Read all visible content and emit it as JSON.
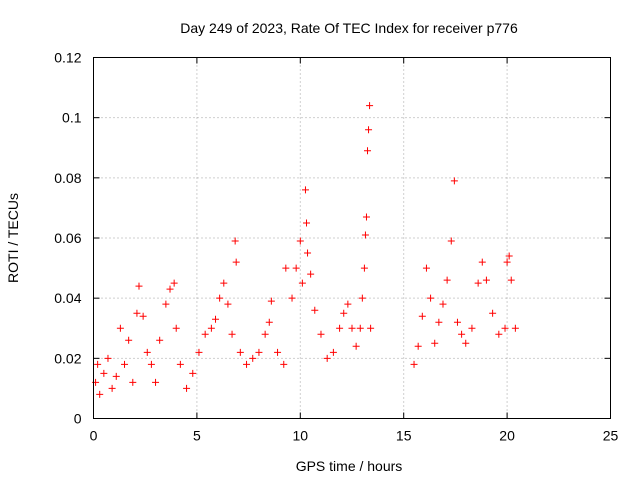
{
  "chart_data": {
    "type": "scatter",
    "title": "Day 249 of 2023, Rate Of TEC Index for receiver p776",
    "xlabel": "GPS time / hours",
    "ylabel": "ROTI / TECUs",
    "xlim": [
      0,
      25
    ],
    "ylim": [
      0,
      0.12
    ],
    "xticks": [
      0,
      5,
      10,
      15,
      20,
      25
    ],
    "xtick_labels": [
      "0",
      "5",
      "10",
      "15",
      "20",
      "25"
    ],
    "yticks": [
      0,
      0.02,
      0.04,
      0.06,
      0.08,
      0.1,
      0.12
    ],
    "ytick_labels": [
      "0",
      "0.02",
      "0.04",
      "0.06",
      "0.08",
      "0.1",
      "0.12"
    ],
    "grid": true,
    "marker": "+",
    "series": [
      {
        "name": "ROTI",
        "color": "#ff0000",
        "points": [
          [
            0.1,
            0.012
          ],
          [
            0.2,
            0.018
          ],
          [
            0.3,
            0.008
          ],
          [
            0.5,
            0.015
          ],
          [
            0.7,
            0.02
          ],
          [
            0.9,
            0.01
          ],
          [
            1.1,
            0.014
          ],
          [
            1.3,
            0.03
          ],
          [
            1.5,
            0.018
          ],
          [
            1.7,
            0.026
          ],
          [
            1.9,
            0.012
          ],
          [
            2.1,
            0.035
          ],
          [
            2.2,
            0.044
          ],
          [
            2.4,
            0.034
          ],
          [
            2.6,
            0.022
          ],
          [
            2.8,
            0.018
          ],
          [
            3.0,
            0.012
          ],
          [
            3.2,
            0.026
          ],
          [
            3.5,
            0.038
          ],
          [
            3.7,
            0.043
          ],
          [
            3.9,
            0.045
          ],
          [
            4.0,
            0.03
          ],
          [
            4.2,
            0.018
          ],
          [
            4.5,
            0.01
          ],
          [
            4.8,
            0.015
          ],
          [
            5.1,
            0.022
          ],
          [
            5.4,
            0.028
          ],
          [
            5.7,
            0.03
          ],
          [
            5.9,
            0.033
          ],
          [
            6.1,
            0.04
          ],
          [
            6.3,
            0.045
          ],
          [
            6.5,
            0.038
          ],
          [
            6.7,
            0.028
          ],
          [
            6.85,
            0.059
          ],
          [
            6.9,
            0.052
          ],
          [
            7.1,
            0.022
          ],
          [
            7.4,
            0.018
          ],
          [
            7.7,
            0.02
          ],
          [
            8.0,
            0.022
          ],
          [
            8.3,
            0.028
          ],
          [
            8.5,
            0.032
          ],
          [
            8.6,
            0.039
          ],
          [
            8.9,
            0.022
          ],
          [
            9.2,
            0.018
          ],
          [
            9.3,
            0.05
          ],
          [
            9.6,
            0.04
          ],
          [
            9.8,
            0.05
          ],
          [
            10.0,
            0.059
          ],
          [
            10.1,
            0.045
          ],
          [
            10.25,
            0.076
          ],
          [
            10.3,
            0.065
          ],
          [
            10.35,
            0.055
          ],
          [
            10.5,
            0.048
          ],
          [
            10.7,
            0.036
          ],
          [
            11.0,
            0.028
          ],
          [
            11.3,
            0.02
          ],
          [
            11.6,
            0.022
          ],
          [
            11.9,
            0.03
          ],
          [
            12.1,
            0.035
          ],
          [
            12.3,
            0.038
          ],
          [
            12.5,
            0.03
          ],
          [
            12.7,
            0.024
          ],
          [
            12.9,
            0.03
          ],
          [
            13.0,
            0.04
          ],
          [
            13.1,
            0.05
          ],
          [
            13.15,
            0.061
          ],
          [
            13.2,
            0.067
          ],
          [
            13.25,
            0.089
          ],
          [
            13.3,
            0.096
          ],
          [
            13.35,
            0.104
          ],
          [
            13.4,
            0.03
          ],
          [
            15.5,
            0.018
          ],
          [
            15.7,
            0.024
          ],
          [
            15.9,
            0.034
          ],
          [
            16.1,
            0.05
          ],
          [
            16.3,
            0.04
          ],
          [
            16.5,
            0.025
          ],
          [
            16.7,
            0.032
          ],
          [
            16.9,
            0.038
          ],
          [
            17.1,
            0.046
          ],
          [
            17.3,
            0.059
          ],
          [
            17.45,
            0.079
          ],
          [
            17.6,
            0.032
          ],
          [
            17.8,
            0.028
          ],
          [
            18.0,
            0.025
          ],
          [
            18.3,
            0.03
          ],
          [
            18.6,
            0.045
          ],
          [
            18.8,
            0.052
          ],
          [
            19.0,
            0.046
          ],
          [
            19.3,
            0.035
          ],
          [
            19.6,
            0.028
          ],
          [
            19.9,
            0.03
          ],
          [
            20.0,
            0.052
          ],
          [
            20.1,
            0.054
          ],
          [
            20.2,
            0.046
          ],
          [
            20.4,
            0.03
          ]
        ]
      }
    ]
  }
}
